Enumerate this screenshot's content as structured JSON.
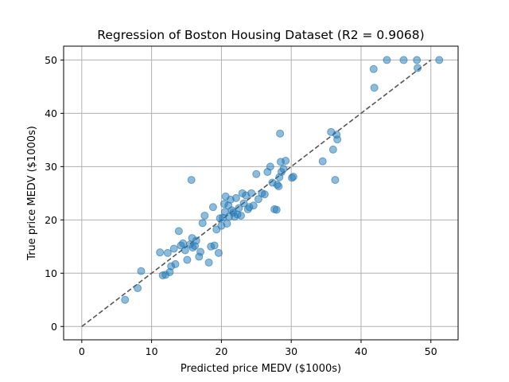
{
  "chart_data": {
    "type": "scatter",
    "title": "Regression of Boston Housing Dataset (R2 = 0.9068)",
    "xlabel": "Predicted price MEDV ($1000s)",
    "ylabel": "True price MEDV ($1000s)",
    "xlim": [
      -2.6,
      53.9
    ],
    "ylim": [
      -2.5,
      52.6
    ],
    "xticks": [
      0,
      10,
      20,
      30,
      40,
      50
    ],
    "yticks": [
      0,
      10,
      20,
      30,
      40,
      50
    ],
    "grid": true,
    "point_color": "#1f77b4",
    "reference_line": {
      "x": [
        0,
        50
      ],
      "y": [
        0,
        50
      ],
      "style": "dashed",
      "color": "#555555"
    },
    "x": [
      6.2,
      8.0,
      8.5,
      11.2,
      11.6,
      12.0,
      12.3,
      12.6,
      12.8,
      13.2,
      13.4,
      13.9,
      14.2,
      14.5,
      14.8,
      15.1,
      15.5,
      15.7,
      15.8,
      15.9,
      16.2,
      16.4,
      16.8,
      17.0,
      17.3,
      17.6,
      18.2,
      18.5,
      18.8,
      19.0,
      19.3,
      19.6,
      19.8,
      20.0,
      20.2,
      20.4,
      20.5,
      20.6,
      20.8,
      21.0,
      21.1,
      21.3,
      21.5,
      21.7,
      21.9,
      22.1,
      22.3,
      22.5,
      22.8,
      23.0,
      23.2,
      23.5,
      23.8,
      24.0,
      24.3,
      24.6,
      25.0,
      25.3,
      25.8,
      26.2,
      26.6,
      27.0,
      27.3,
      27.6,
      27.9,
      28.0,
      28.2,
      28.3,
      28.4,
      28.5,
      28.6,
      28.9,
      29.2,
      30.1,
      30.3,
      34.5,
      35.7,
      36.0,
      36.3,
      36.5,
      36.6,
      41.8,
      41.9,
      43.7,
      46.1,
      48.0,
      48.1,
      51.2
    ],
    "y": [
      5.0,
      7.2,
      10.4,
      13.9,
      9.6,
      9.7,
      13.8,
      10.2,
      11.3,
      14.6,
      11.7,
      17.9,
      15.2,
      15.6,
      14.3,
      12.5,
      15.4,
      27.5,
      16.6,
      14.8,
      15.1,
      16.1,
      13.1,
      14.0,
      19.4,
      20.8,
      12.0,
      15.0,
      22.4,
      15.2,
      18.2,
      13.8,
      20.3,
      18.9,
      20.4,
      23.0,
      21.5,
      24.4,
      19.3,
      22.7,
      20.6,
      23.8,
      21.8,
      21.4,
      20.6,
      24.1,
      21.0,
      22.2,
      20.8,
      25.0,
      23.1,
      24.6,
      22.0,
      22.4,
      25.0,
      22.7,
      28.6,
      23.9,
      25.0,
      24.8,
      29.0,
      30.0,
      27.0,
      22.0,
      21.9,
      26.6,
      26.3,
      28.0,
      36.2,
      30.9,
      29.0,
      29.6,
      31.1,
      27.9,
      28.1,
      31.0,
      36.5,
      33.2,
      27.5,
      36.0,
      35.1,
      48.3,
      44.8,
      50.0,
      50.0,
      50.0,
      48.5,
      50.0
    ]
  }
}
